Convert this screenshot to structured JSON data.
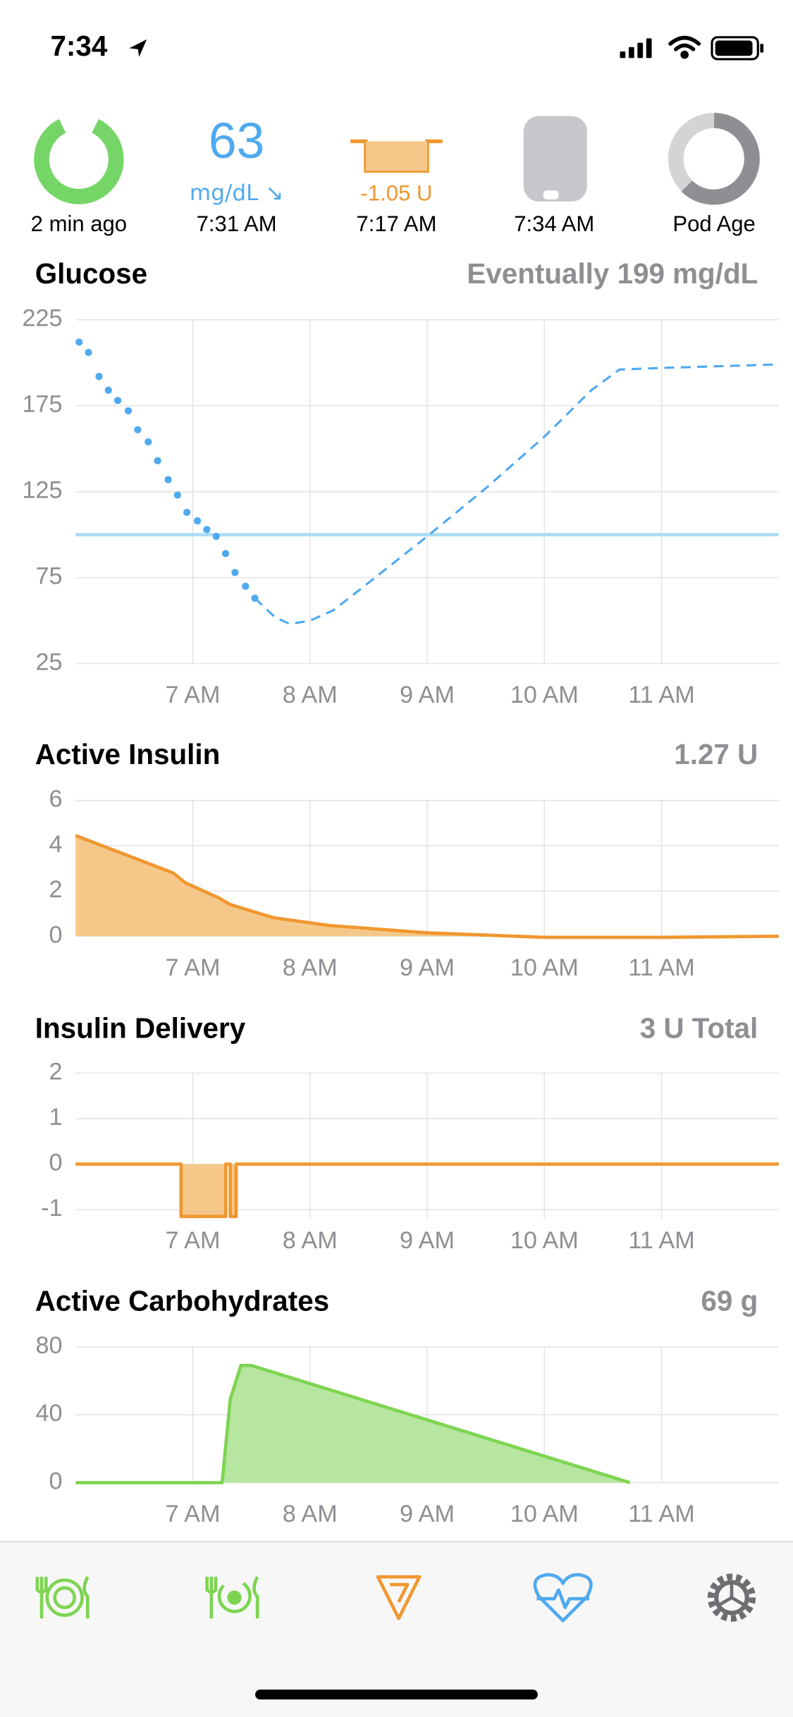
{
  "status_bar": {
    "time": "7:34"
  },
  "hud": {
    "loop": {
      "label": "2 min ago"
    },
    "glucose": {
      "value": "63",
      "unit": "mg/dL ↘",
      "time": "7:31 AM"
    },
    "basal": {
      "rate": "-1.05 U",
      "time": "7:17 AM"
    },
    "pump": {
      "time": "7:34 AM"
    },
    "pod": {
      "label": "Pod Age"
    }
  },
  "chart_data": [
    {
      "type": "line",
      "title": "Glucose",
      "summary": "Eventually 199 mg/dL",
      "xlim": [
        6,
        12
      ],
      "xticks": [
        {
          "value": 7,
          "label": "7 AM"
        },
        {
          "value": 8,
          "label": "8 AM"
        },
        {
          "value": 9,
          "label": "9 AM"
        },
        {
          "value": 10,
          "label": "10 AM"
        },
        {
          "value": 11,
          "label": "11 AM"
        }
      ],
      "ylim": [
        25,
        225
      ],
      "yticks": [
        25,
        75,
        125,
        175,
        225
      ],
      "grid": true,
      "target": 100,
      "target_color": "#a8dcf6",
      "series": [
        {
          "style": "dots",
          "color": "#4fa9ef",
          "x": [
            6.03,
            6.11,
            6.2,
            6.28,
            6.36,
            6.45,
            6.53,
            6.62,
            6.7,
            6.79,
            6.87,
            6.95,
            7.04,
            7.12,
            7.2,
            7.28,
            7.36,
            7.45,
            7.53
          ],
          "values": [
            212,
            206,
            192,
            184,
            178,
            172,
            161,
            154,
            143,
            132,
            123,
            113,
            108,
            103,
            99,
            89,
            78,
            70,
            63
          ]
        },
        {
          "style": "dashed",
          "color": "#4fa9ef",
          "x": [
            7.53,
            7.7,
            7.83,
            8.0,
            8.2,
            8.5,
            9.0,
            9.5,
            10.0,
            10.4,
            10.64,
            11.0,
            12.0
          ],
          "values": [
            63,
            52,
            48,
            50,
            56,
            72,
            99,
            127,
            157,
            184,
            196,
            197,
            199
          ]
        }
      ]
    },
    {
      "type": "area",
      "title": "Active Insulin",
      "summary": "1.27 U",
      "xlim": [
        6,
        12
      ],
      "xticks": [
        {
          "value": 7,
          "label": "7 AM"
        },
        {
          "value": 8,
          "label": "8 AM"
        },
        {
          "value": 9,
          "label": "9 AM"
        },
        {
          "value": 10,
          "label": "10 AM"
        },
        {
          "value": 11,
          "label": "11 AM"
        }
      ],
      "ylim": [
        0,
        6
      ],
      "yticks": [
        0,
        2,
        4,
        6
      ],
      "grid": true,
      "series": [
        {
          "style": "area",
          "color": "#f0972f",
          "fill": "#f5c88a",
          "x": [
            6.0,
            6.83,
            6.94,
            7.22,
            7.32,
            7.69,
            8.16,
            9.0,
            10.0,
            11.0,
            12.0
          ],
          "values": [
            4.45,
            2.8,
            2.35,
            1.7,
            1.4,
            0.82,
            0.48,
            0.15,
            -0.05,
            -0.05,
            0
          ]
        }
      ]
    },
    {
      "type": "area",
      "title": "Insulin Delivery",
      "summary": "3 U Total",
      "xlim": [
        6,
        12
      ],
      "xticks": [
        {
          "value": 7,
          "label": "7 AM"
        },
        {
          "value": 8,
          "label": "8 AM"
        },
        {
          "value": 9,
          "label": "9 AM"
        },
        {
          "value": 10,
          "label": "10 AM"
        },
        {
          "value": 11,
          "label": "11 AM"
        }
      ],
      "ylim": [
        -1.2,
        2
      ],
      "yticks": [
        -1,
        0,
        1,
        2
      ],
      "grid": true,
      "series": [
        {
          "style": "area",
          "color": "#f0972f",
          "fill": "#f5c88a",
          "x": [
            6,
            6.9,
            6.9,
            7.28,
            7.28,
            7.32,
            7.32,
            7.37,
            7.37,
            12
          ],
          "values": [
            0,
            0,
            -1.15,
            -1.15,
            0,
            0,
            -1.15,
            -1.15,
            0,
            0
          ]
        }
      ]
    },
    {
      "type": "area",
      "title": "Active Carbohydrates",
      "summary": "69 g",
      "xlim": [
        6,
        12
      ],
      "xticks": [
        {
          "value": 7,
          "label": "7 AM"
        },
        {
          "value": 8,
          "label": "8 AM"
        },
        {
          "value": 9,
          "label": "9 AM"
        },
        {
          "value": 10,
          "label": "10 AM"
        },
        {
          "value": 11,
          "label": "11 AM"
        }
      ],
      "ylim": [
        0,
        80
      ],
      "yticks": [
        0,
        40,
        80
      ],
      "grid": true,
      "series": [
        {
          "style": "area",
          "color": "#7ed452",
          "fill": "#b6e6a0",
          "x": [
            6,
            7.25,
            7.32,
            7.41,
            7.5,
            10.59,
            10.73
          ],
          "values": [
            0,
            0,
            49,
            69,
            69,
            3,
            0
          ]
        }
      ]
    }
  ]
}
